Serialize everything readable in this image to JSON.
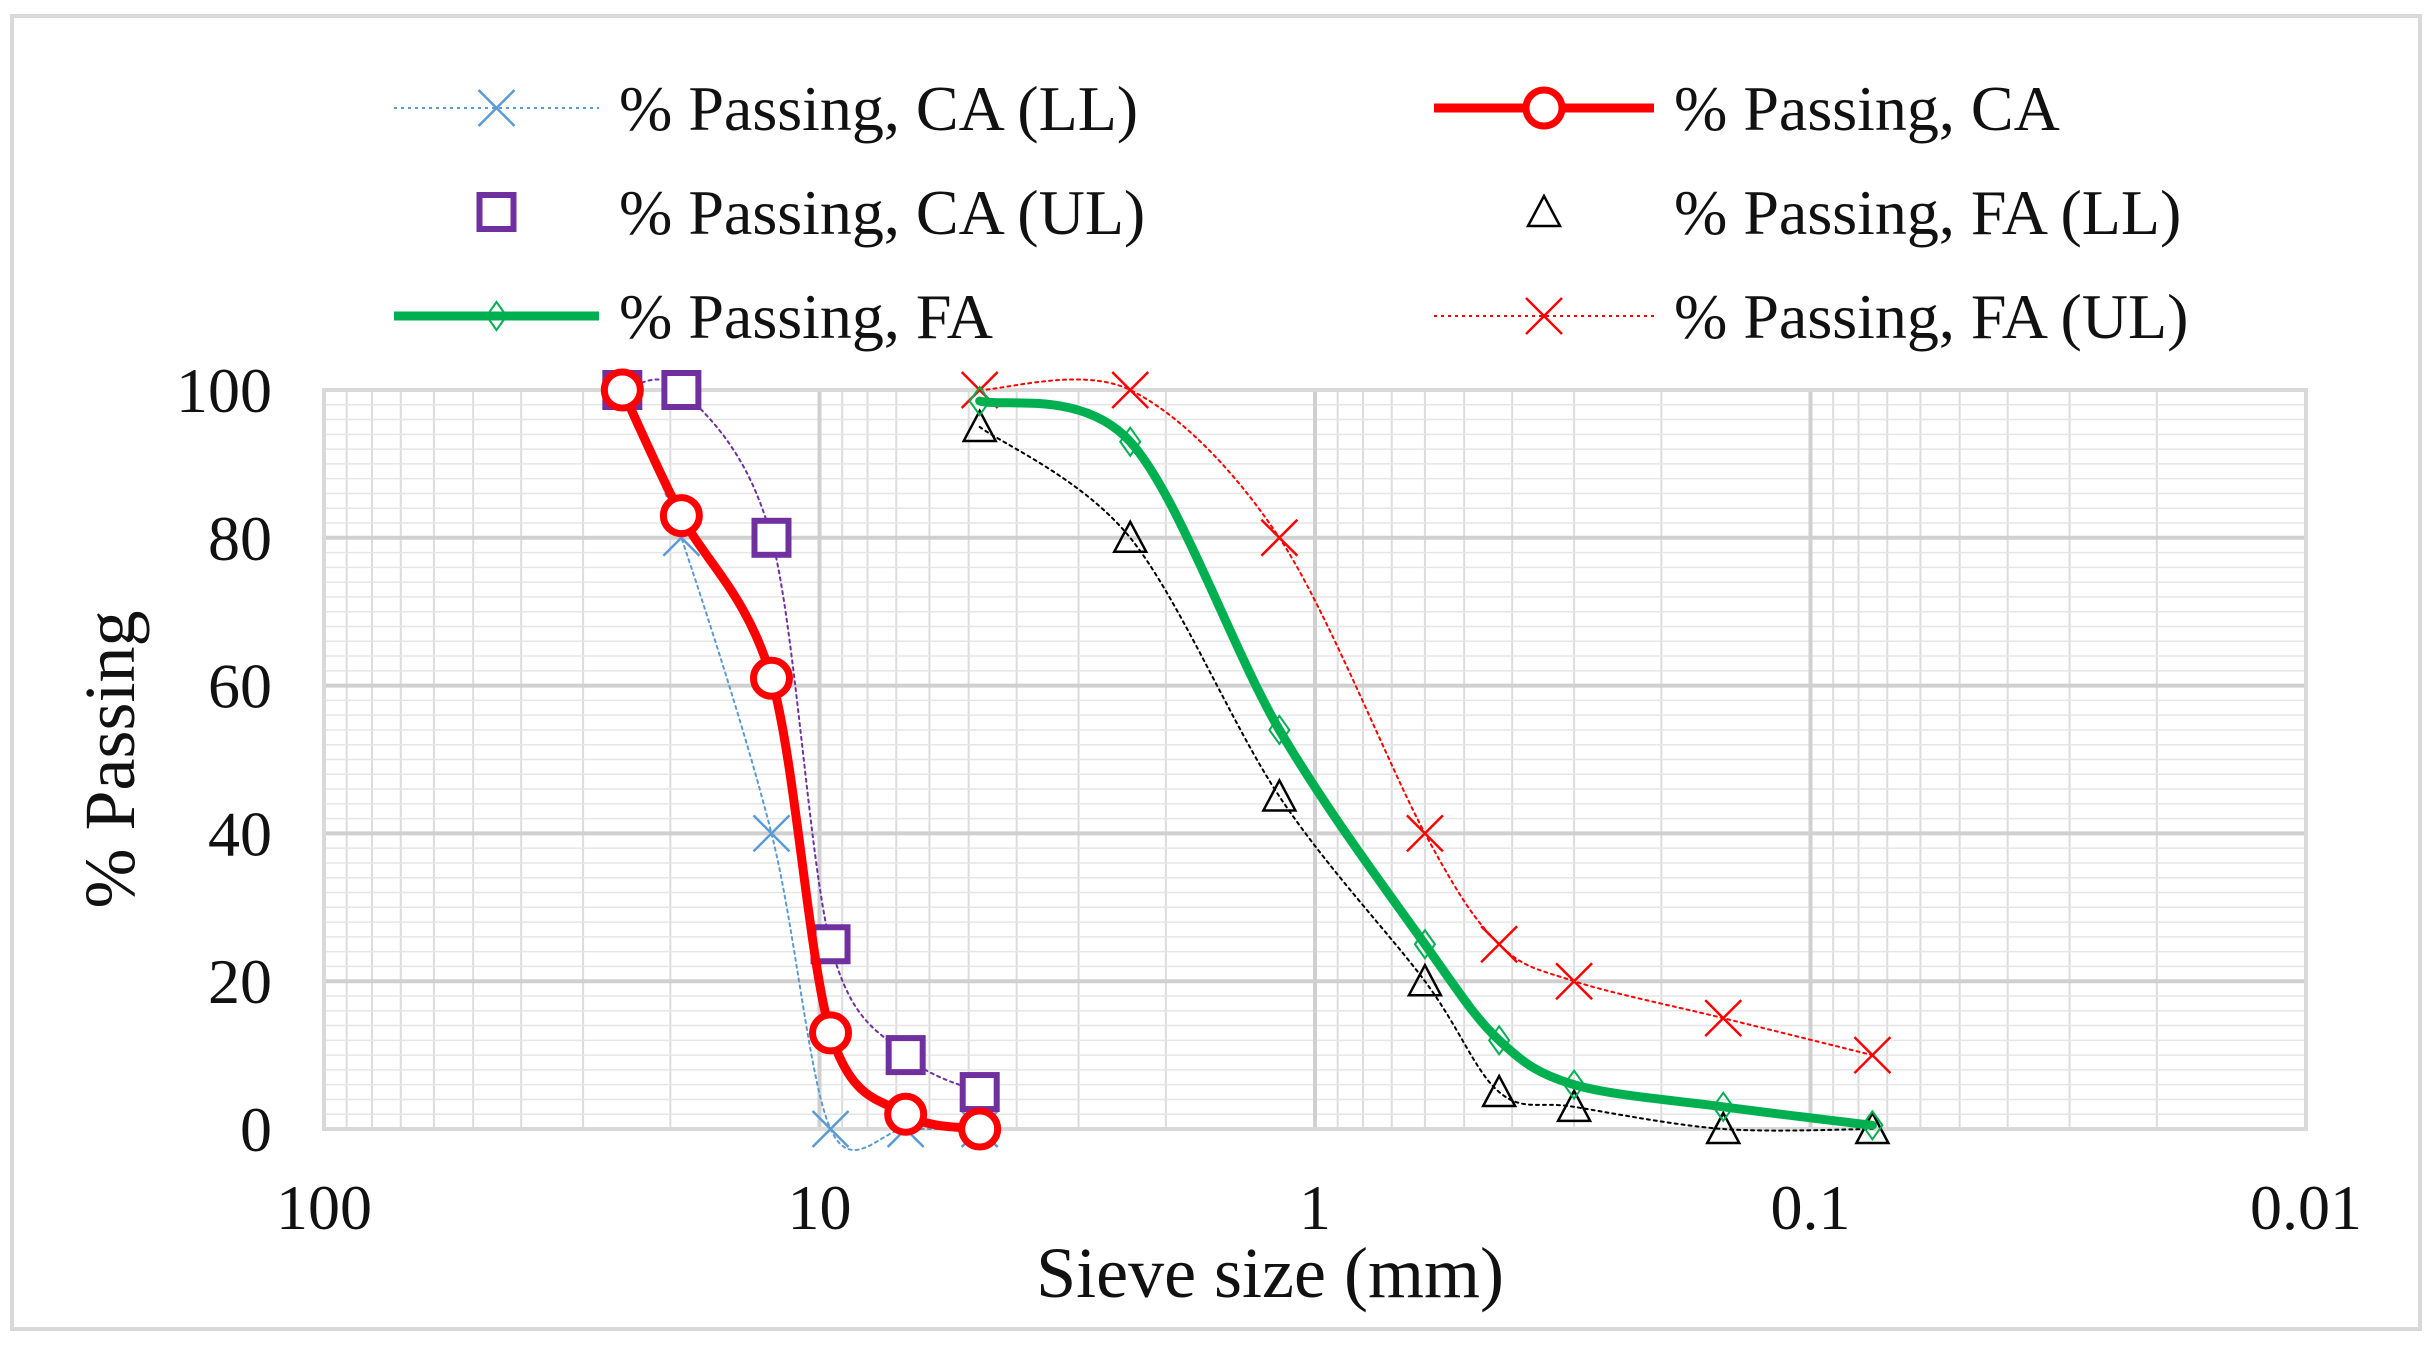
{
  "chart_data": {
    "type": "scatter",
    "title": "",
    "xlabel": "Sieve size (mm)",
    "ylabel": "% Passing",
    "x_scale": "log",
    "x_reversed": true,
    "xlim": [
      100,
      0.01
    ],
    "ylim": [
      0,
      100
    ],
    "x_ticks": [
      "100",
      "10",
      "1",
      "0.1",
      "0.01"
    ],
    "y_ticks": [
      "0",
      "20",
      "40",
      "60",
      "80",
      "100"
    ],
    "grid": true,
    "legend_position": "top",
    "series": [
      {
        "name": "% Passing, CA (LL)",
        "color": "#5b9bd5",
        "marker": "x",
        "line": "dotted-thin",
        "x": [
          25,
          19,
          12.5,
          9.5,
          6.7,
          4.75
        ],
        "y": [
          100,
          80,
          40,
          0,
          0,
          0
        ]
      },
      {
        "name": "% Passing, CA",
        "color": "#ff0000",
        "marker": "circle",
        "line": "solid-thick",
        "x": [
          25,
          19,
          12.5,
          9.5,
          6.7,
          4.75
        ],
        "y": [
          100,
          83,
          61,
          13,
          2,
          0
        ]
      },
      {
        "name": "% Passing, CA (UL)",
        "color": "#7030a0",
        "marker": "square",
        "line": "dotted-thin",
        "x": [
          25,
          19,
          12.5,
          9.5,
          6.7,
          4.75
        ],
        "y": [
          100,
          100,
          80,
          25,
          10,
          5
        ]
      },
      {
        "name": "% Passing, FA (LL)",
        "color": "#000000",
        "marker": "triangle",
        "line": "dotted-thin",
        "x": [
          4.75,
          2.36,
          1.18,
          0.6,
          0.425,
          0.3,
          0.15,
          0.075
        ],
        "y": [
          95,
          80,
          45,
          20,
          5,
          3,
          0,
          0
        ]
      },
      {
        "name": "% Passing, FA",
        "color": "#00b050",
        "marker": "diamond",
        "line": "solid-thick",
        "x": [
          4.75,
          2.36,
          1.18,
          0.6,
          0.425,
          0.3,
          0.15,
          0.075
        ],
        "y": [
          98.5,
          93,
          54,
          25,
          12,
          6,
          3,
          0.5
        ]
      },
      {
        "name": "% Passing, FA (UL)",
        "color": "#ff0000",
        "marker": "x",
        "line": "dotted-thin",
        "x": [
          4.75,
          2.36,
          1.18,
          0.6,
          0.425,
          0.3,
          0.15,
          0.075
        ],
        "y": [
          100,
          100,
          80,
          40,
          25,
          20,
          15,
          10
        ]
      }
    ]
  }
}
